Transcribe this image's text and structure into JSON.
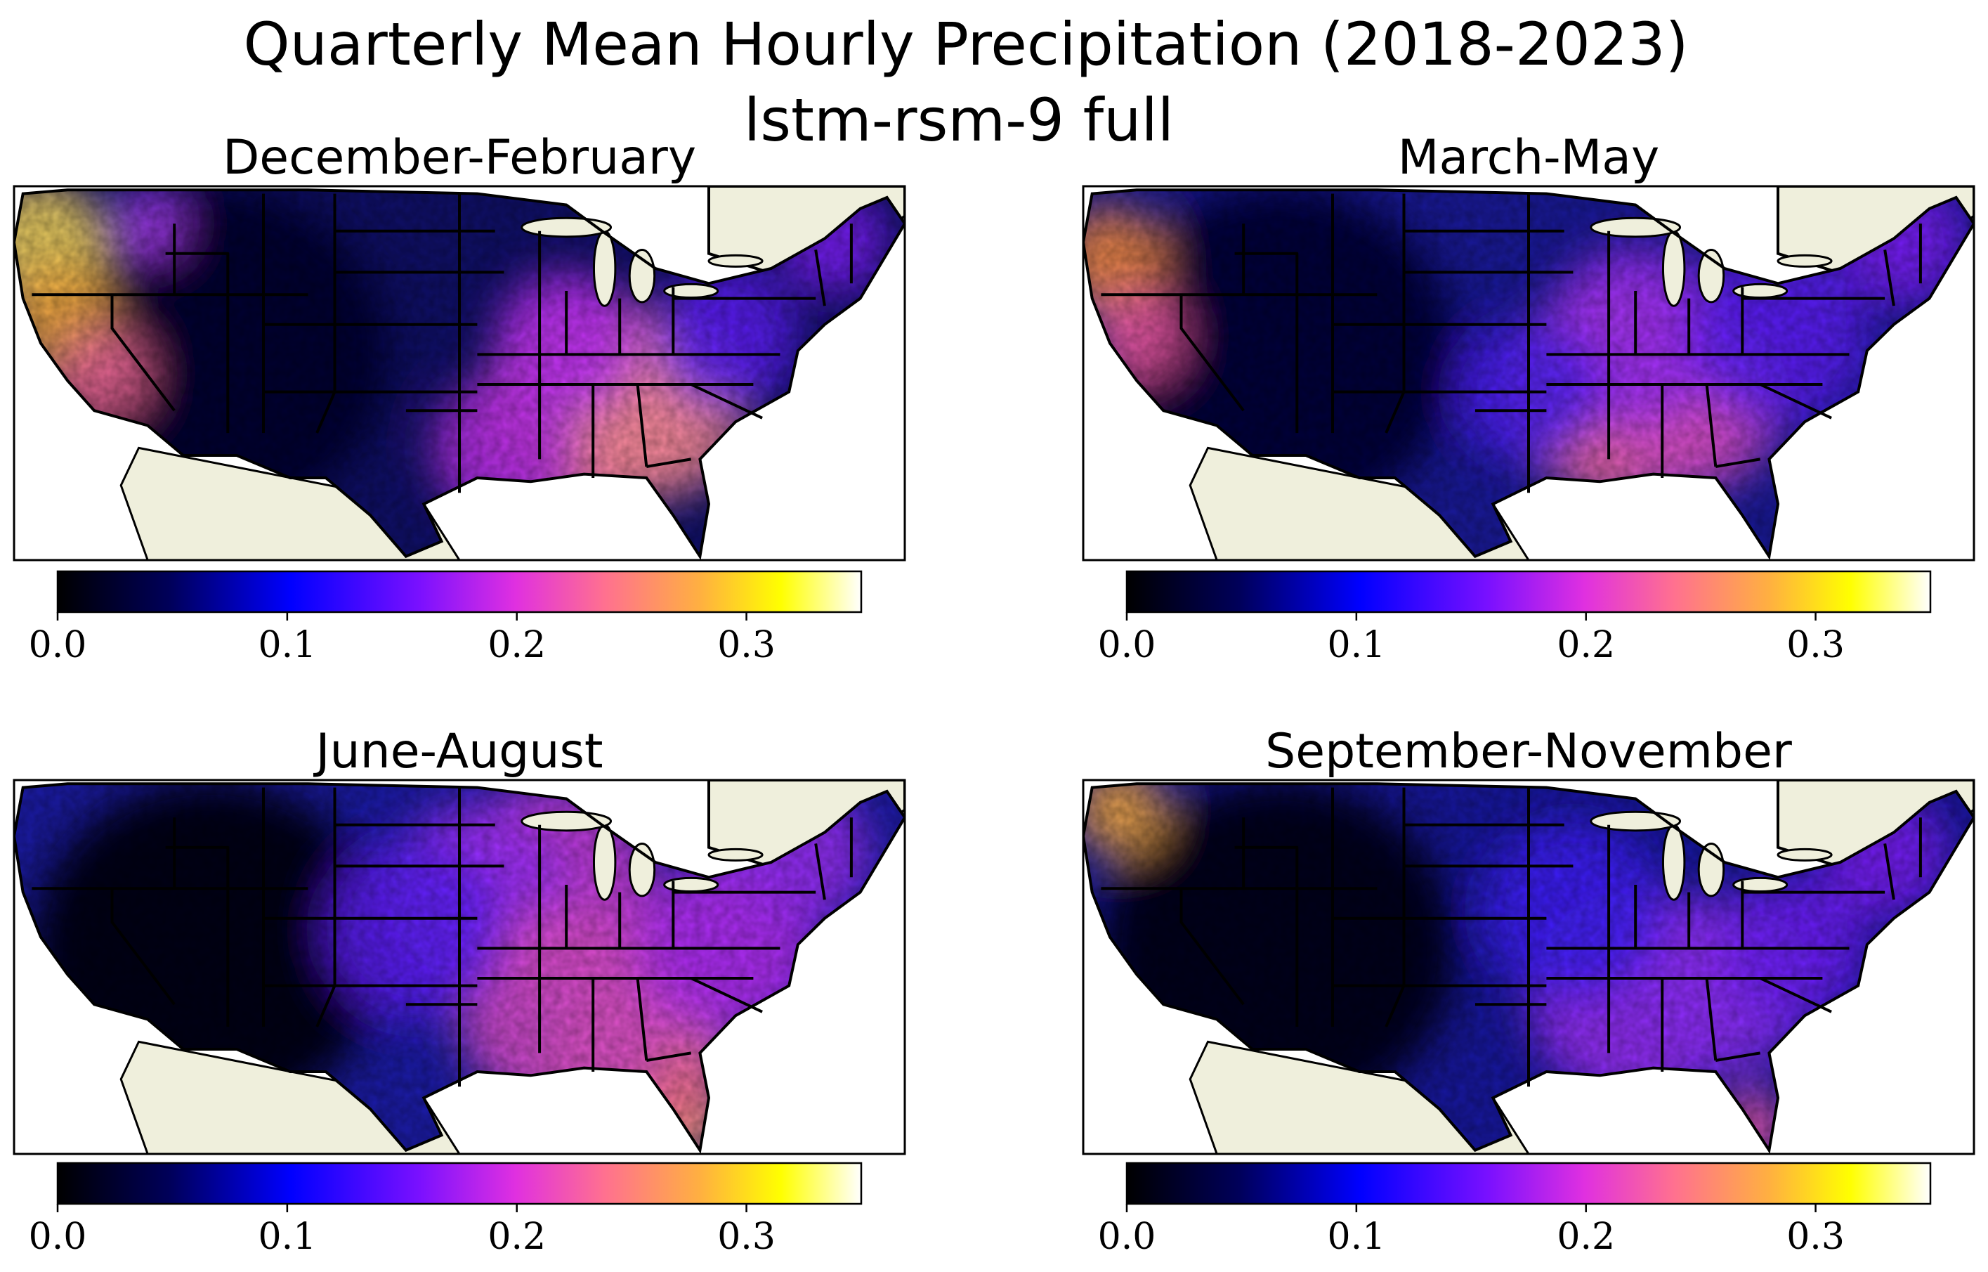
{
  "figure": {
    "title_line1": "Quarterly Mean Hourly Precipitation (2018-2023)",
    "title_line2": "lstm-rsm-9 full"
  },
  "chart_data": [
    {
      "type": "heatmap",
      "title": "December-February",
      "map_region": "contiguous United States",
      "colormap": "gnuplot2",
      "colorbar": {
        "range": [
          0.0,
          0.35
        ],
        "ticks": [
          "0.0",
          "0.1",
          "0.2",
          "0.3"
        ],
        "orientation": "horizontal"
      },
      "grid": false
    },
    {
      "type": "heatmap",
      "title": "March-May",
      "map_region": "contiguous United States",
      "colormap": "gnuplot2",
      "colorbar": {
        "range": [
          0.0,
          0.35
        ],
        "ticks": [
          "0.0",
          "0.1",
          "0.2",
          "0.3"
        ],
        "orientation": "horizontal"
      },
      "grid": false
    },
    {
      "type": "heatmap",
      "title": "June-August",
      "map_region": "contiguous United States",
      "colormap": "gnuplot2",
      "colorbar": {
        "range": [
          0.0,
          0.35
        ],
        "ticks": [
          "0.0",
          "0.1",
          "0.2",
          "0.3"
        ],
        "orientation": "horizontal"
      },
      "grid": false
    },
    {
      "type": "heatmap",
      "title": "September-November",
      "map_region": "contiguous United States",
      "colormap": "gnuplot2",
      "colorbar": {
        "range": [
          0.0,
          0.35
        ],
        "ticks": [
          "0.0",
          "0.1",
          "0.2",
          "0.3"
        ],
        "orientation": "horizontal"
      },
      "grid": false
    }
  ],
  "colors": {
    "land_background": "#efefdc",
    "ocean": "#ffffff",
    "border": "#000000",
    "colormap_stops": [
      "#000000",
      "#000080",
      "#0000ff",
      "#8000ff",
      "#ff40c0",
      "#ff8040",
      "#ffff00",
      "#ffffff"
    ]
  }
}
